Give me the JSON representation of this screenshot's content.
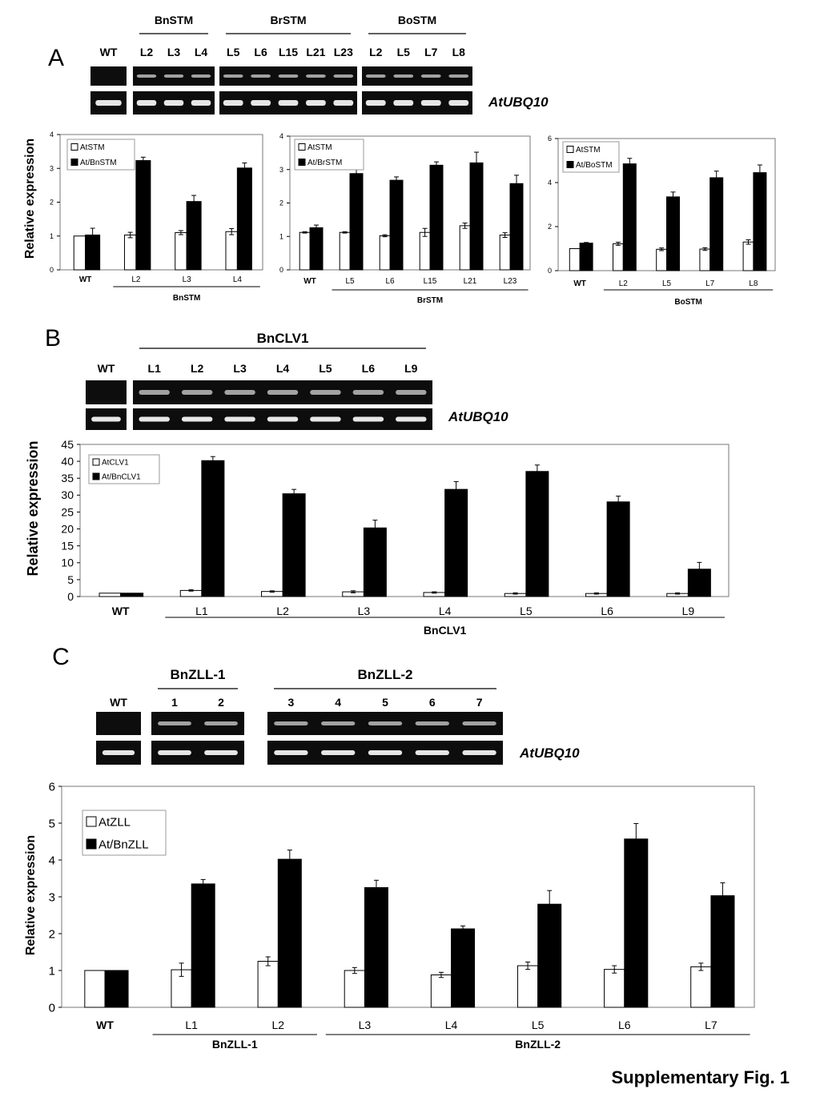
{
  "figure_label": "Supplementary Fig. 1",
  "gel_control_label": "AtUBQ10",
  "panels": {
    "A": {
      "letter": "A",
      "gels": [
        {
          "lanes": [
            "WT"
          ],
          "groups": []
        },
        {
          "lanes": [
            "L2",
            "L3",
            "L4"
          ],
          "groups": [
            {
              "name": "BnSTM"
            }
          ]
        },
        {
          "lanes": [
            "L5",
            "L6",
            "L15",
            "L21",
            "L23"
          ],
          "groups": [
            {
              "name": "BrSTM"
            }
          ]
        },
        {
          "lanes": [
            "L2",
            "L5",
            "L7",
            "L8"
          ],
          "groups": [
            {
              "name": "BoSTM"
            }
          ]
        }
      ]
    },
    "B": {
      "letter": "B",
      "gels": [
        {
          "lanes": [
            "WT"
          ]
        },
        {
          "lanes": [
            "L1",
            "L2",
            "L3",
            "L4",
            "L5",
            "L6",
            "L9"
          ],
          "group": "BnCLV1"
        }
      ]
    },
    "C": {
      "letter": "C",
      "gels": [
        {
          "lanes": [
            "WT"
          ]
        },
        {
          "lanes": [
            "1",
            "2"
          ],
          "group": "BnZLL-1"
        },
        {
          "lanes": [
            "3",
            "4",
            "5",
            "6",
            "7"
          ],
          "group": "BnZLL-2"
        }
      ]
    }
  },
  "chart_data": [
    {
      "id": "A1",
      "type": "bar",
      "ylabel": "Relative expression",
      "ylim": [
        0,
        4
      ],
      "yticks": [
        0,
        1,
        2,
        3,
        4
      ],
      "categories": [
        "WT",
        "L2",
        "L3",
        "L4"
      ],
      "groups": [
        {
          "name": "BnSTM",
          "from": 1,
          "to": 3
        }
      ],
      "series": [
        {
          "name": "AtSTM",
          "color": "#ffffff",
          "values": [
            1.0,
            1.03,
            1.1,
            1.13
          ],
          "errors": [
            0.0,
            0.08,
            0.06,
            0.09
          ]
        },
        {
          "name": "At/BnSTM",
          "color": "#000000",
          "values": [
            1.03,
            3.23,
            2.02,
            3.01
          ],
          "errors": [
            0.2,
            0.1,
            0.18,
            0.15
          ]
        }
      ],
      "legend": "top-left"
    },
    {
      "id": "A2",
      "type": "bar",
      "ylim": [
        0,
        4
      ],
      "yticks": [
        0,
        1,
        2,
        3,
        4
      ],
      "categories": [
        "WT",
        "L5",
        "L6",
        "L15",
        "L21",
        "L23"
      ],
      "groups": [
        {
          "name": "BrSTM",
          "from": 1,
          "to": 5
        }
      ],
      "series": [
        {
          "name": "AtSTM",
          "color": "#ffffff",
          "values": [
            1.12,
            1.12,
            1.02,
            1.12,
            1.32,
            1.04
          ],
          "errors": [
            0.02,
            0.02,
            0.03,
            0.12,
            0.08,
            0.07
          ]
        },
        {
          "name": "At/BrSTM",
          "color": "#000000",
          "values": [
            1.26,
            2.88,
            2.68,
            3.13,
            3.2,
            2.58
          ],
          "errors": [
            0.08,
            0.14,
            0.1,
            0.1,
            0.32,
            0.25
          ]
        }
      ],
      "legend": "top-left"
    },
    {
      "id": "A3",
      "type": "bar",
      "ylim": [
        0,
        6
      ],
      "yticks": [
        0,
        2,
        4,
        6
      ],
      "categories": [
        "WT",
        "L2",
        "L5",
        "L7",
        "L8"
      ],
      "groups": [
        {
          "name": "BoSTM",
          "from": 1,
          "to": 4
        }
      ],
      "series": [
        {
          "name": "AtSTM",
          "color": "#ffffff",
          "values": [
            1.0,
            1.22,
            0.97,
            0.98,
            1.3
          ],
          "errors": [
            0.0,
            0.07,
            0.06,
            0.06,
            0.1
          ]
        },
        {
          "name": "At/BoSTM",
          "color": "#000000",
          "values": [
            1.25,
            4.85,
            3.35,
            4.22,
            4.45
          ],
          "errors": [
            0.03,
            0.25,
            0.22,
            0.3,
            0.35
          ]
        }
      ],
      "legend": "top-left"
    },
    {
      "id": "B1",
      "type": "bar",
      "ylabel": "Relative expression",
      "ylim": [
        0,
        45
      ],
      "yticks": [
        0,
        5,
        10,
        15,
        20,
        25,
        30,
        35,
        40,
        45
      ],
      "categories": [
        "WT",
        "L1",
        "L2",
        "L3",
        "L4",
        "L5",
        "L6",
        "L9"
      ],
      "groups": [
        {
          "name": "BnCLV1",
          "from": 1,
          "to": 7
        }
      ],
      "series": [
        {
          "name": "AtCLV1",
          "color": "#ffffff",
          "values": [
            1.0,
            1.8,
            1.5,
            1.4,
            1.2,
            0.9,
            0.9,
            0.9
          ],
          "errors": [
            0.0,
            0.2,
            0.2,
            0.3,
            0.2,
            0.2,
            0.2,
            0.2
          ]
        },
        {
          "name": "At/BnCLV1",
          "color": "#000000",
          "values": [
            1.0,
            40.2,
            30.4,
            20.3,
            31.7,
            37.0,
            28.0,
            8.1
          ],
          "errors": [
            0.0,
            1.2,
            1.3,
            2.3,
            2.3,
            1.9,
            1.7,
            2.0
          ]
        }
      ],
      "legend": "top-left"
    },
    {
      "id": "C1",
      "type": "bar",
      "ylabel": "Relative expression",
      "ylim": [
        0,
        6
      ],
      "yticks": [
        0,
        1,
        2,
        3,
        4,
        5,
        6
      ],
      "categories": [
        "WT",
        "L1",
        "L2",
        "L3",
        "L4",
        "L5",
        "L6",
        "L7"
      ],
      "groups": [
        {
          "name": "BnZLL-1",
          "from": 1,
          "to": 2
        },
        {
          "name": "BnZLL-2",
          "from": 3,
          "to": 7
        }
      ],
      "series": [
        {
          "name": "AtZLL",
          "color": "#ffffff",
          "values": [
            1.0,
            1.02,
            1.25,
            1.0,
            0.88,
            1.13,
            1.03,
            1.1
          ],
          "errors": [
            0.0,
            0.18,
            0.12,
            0.08,
            0.07,
            0.1,
            0.1,
            0.1
          ]
        },
        {
          "name": "At/BnZLL",
          "color": "#000000",
          "values": [
            1.0,
            3.35,
            4.02,
            3.25,
            2.13,
            2.8,
            4.57,
            3.03
          ],
          "errors": [
            0.0,
            0.12,
            0.25,
            0.2,
            0.08,
            0.37,
            0.42,
            0.35
          ]
        }
      ],
      "legend": "top-left"
    }
  ]
}
